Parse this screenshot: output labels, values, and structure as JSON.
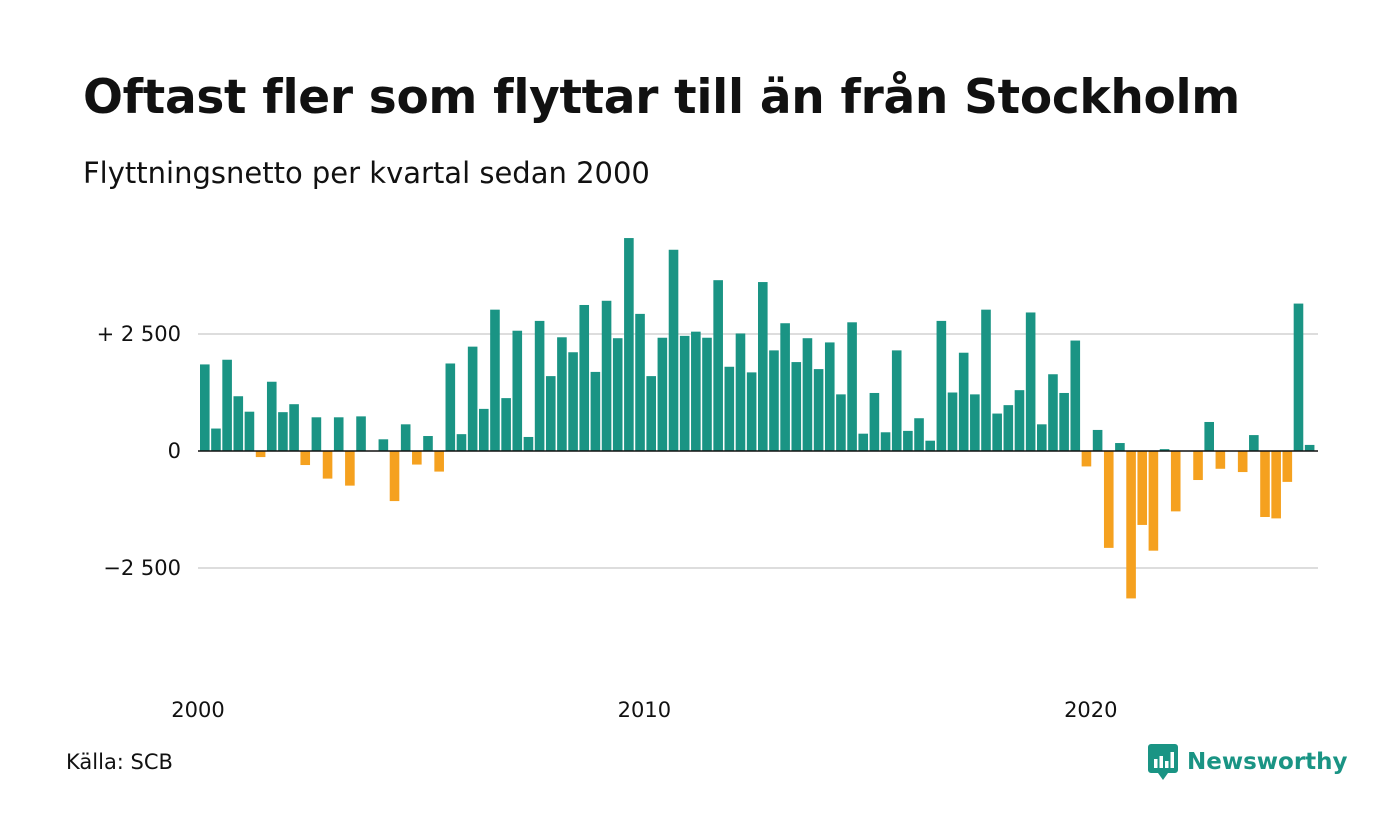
{
  "header": {
    "title": "Oftast fler som flyttar till än från Stockholm",
    "subtitle": "Flyttningsnetto per kvartal sedan 2000"
  },
  "footer": {
    "source": "Källa: SCB",
    "brand": "Newsworthy"
  },
  "colors": {
    "positive": "#1a9484",
    "negative": "#f5a11f",
    "gridline": "#dddddd",
    "zero_line": "#111111",
    "text": "#111111",
    "brand": "#1a9484"
  },
  "chart_data": {
    "type": "bar",
    "title": "Oftast fler som flyttar till än från Stockholm",
    "subtitle": "Flyttningsnetto per kvartal sedan 2000",
    "xlabel": "",
    "ylabel": "",
    "x_start_year": 2000,
    "periods_per_year": 4,
    "x_ticks": [
      {
        "value": 2000,
        "label": "2000"
      },
      {
        "value": 2010,
        "label": "2010"
      },
      {
        "value": 2020,
        "label": "2020"
      }
    ],
    "y_ticks": [
      {
        "value": 2500,
        "label": "+ 2 500"
      },
      {
        "value": 0,
        "label": "0"
      },
      {
        "value": -2500,
        "label": "−2 500"
      }
    ],
    "ylim": [
      -5000,
      5000
    ],
    "grid": true,
    "legend": "none",
    "values": [
      1850,
      480,
      1950,
      1170,
      840,
      -130,
      1480,
      830,
      1000,
      -300,
      720,
      -590,
      720,
      -740,
      740,
      -10,
      250,
      -1070,
      570,
      -290,
      320,
      -440,
      1870,
      360,
      2230,
      900,
      3020,
      1130,
      2570,
      300,
      2780,
      1600,
      2430,
      2110,
      3120,
      1690,
      3210,
      2410,
      4550,
      2930,
      1600,
      2420,
      4300,
      2460,
      2550,
      2420,
      3650,
      1800,
      2510,
      1680,
      3610,
      2150,
      2730,
      1900,
      2410,
      1750,
      2320,
      1210,
      2750,
      370,
      1240,
      400,
      2150,
      430,
      700,
      220,
      2780,
      1250,
      2100,
      1210,
      3020,
      800,
      980,
      1300,
      2960,
      570,
      1640,
      1240,
      2360,
      -330,
      450,
      -2070,
      170,
      -3150,
      -1580,
      -2130,
      40,
      -1290,
      0,
      -620,
      620,
      -380,
      0,
      -450,
      340,
      -1410,
      -1440,
      -660,
      3150,
      130
    ]
  }
}
